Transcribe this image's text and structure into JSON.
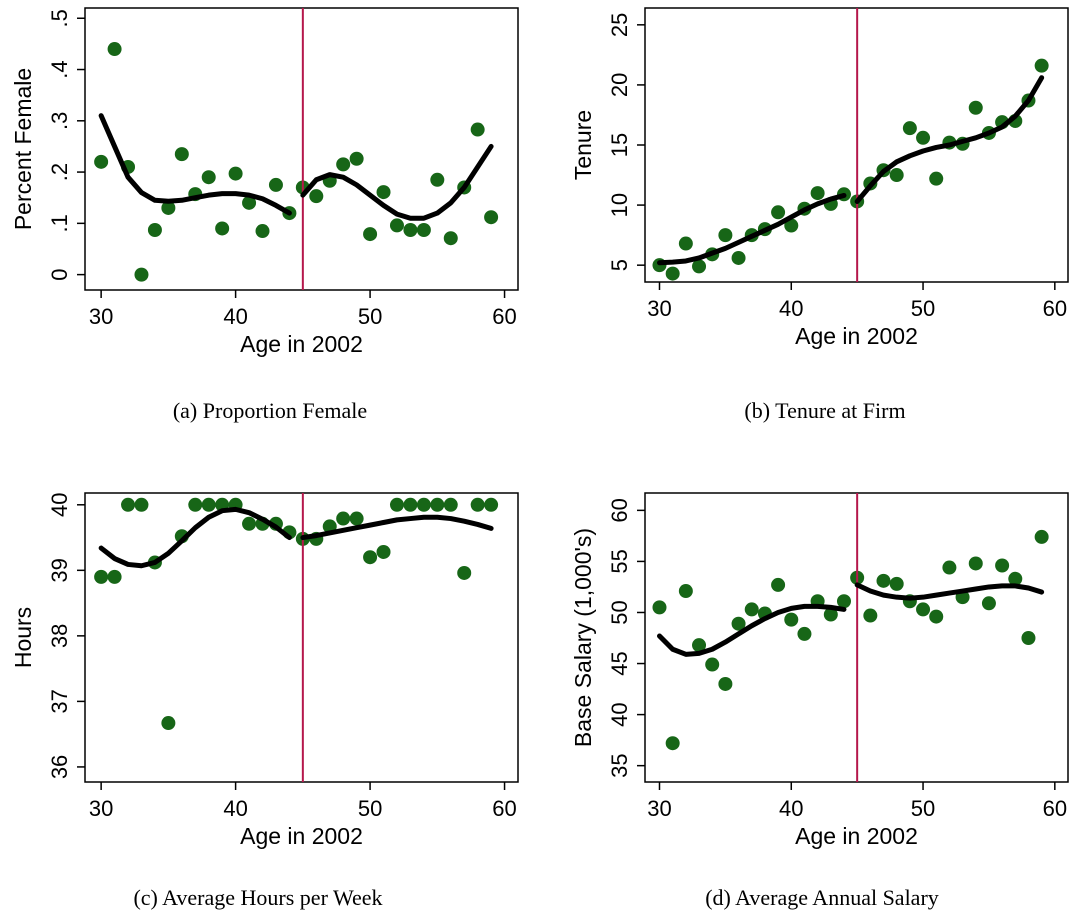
{
  "chart_data": [
    {
      "type": "scatter",
      "caption": "(a) Proportion Female",
      "xlabel": "Age in 2002",
      "ylabel": "Percent Female",
      "x": [
        30,
        31,
        32,
        33,
        34,
        35,
        36,
        37,
        38,
        39,
        40,
        41,
        42,
        43,
        44,
        45,
        46,
        47,
        48,
        49,
        50,
        51,
        52,
        53,
        54,
        55,
        56,
        57,
        58,
        59
      ],
      "xlim": [
        28.8,
        61
      ],
      "xticks": [
        30,
        40,
        50,
        60
      ],
      "ylim": [
        -0.03,
        0.52
      ],
      "yticks": [
        0,
        {
          "value": 0.1,
          "label": ".1"
        },
        {
          "value": 0.2,
          "label": ".2"
        },
        {
          "value": 0.3,
          "label": ".3"
        },
        {
          "value": 0.4,
          "label": ".4"
        },
        {
          "value": 0.5,
          "label": ".5"
        }
      ],
      "vline": 45,
      "vline_color": "#b5174b",
      "series": [
        {
          "type": "scatter",
          "color": "#176617",
          "values": [
            0.22,
            0.44,
            0.21,
            0,
            0.087,
            0.13,
            0.235,
            0.157,
            0.19,
            0.09,
            0.197,
            0.14,
            0.085,
            0.175,
            0.12,
            0.17,
            0.153,
            0.183,
            0.215,
            0.226,
            0.079,
            0.161,
            0.096,
            0.087,
            0.087,
            0.185,
            0.071,
            0.17,
            0.283,
            0.112
          ]
        },
        {
          "type": "line",
          "color": "#000000",
          "x": [
            30,
            31,
            32,
            33,
            34,
            35,
            36,
            37,
            38,
            39,
            40,
            41,
            42,
            43,
            44
          ],
          "values": [
            0.31,
            0.25,
            0.19,
            0.16,
            0.145,
            0.143,
            0.145,
            0.15,
            0.155,
            0.158,
            0.158,
            0.155,
            0.148,
            0.135,
            0.12
          ]
        },
        {
          "type": "line",
          "color": "#000000",
          "x": [
            45,
            46,
            47,
            48,
            49,
            50,
            51,
            52,
            53,
            54,
            55,
            56,
            57,
            58,
            59
          ],
          "values": [
            0.155,
            0.185,
            0.195,
            0.19,
            0.175,
            0.155,
            0.135,
            0.118,
            0.11,
            0.11,
            0.12,
            0.14,
            0.17,
            0.21,
            0.25
          ]
        }
      ]
    },
    {
      "type": "scatter",
      "caption": "(b) Tenure at Firm",
      "xlabel": "Age in 2002",
      "ylabel": "Tenure",
      "x": [
        30,
        31,
        32,
        33,
        34,
        35,
        36,
        37,
        38,
        39,
        40,
        41,
        42,
        43,
        44,
        45,
        46,
        47,
        48,
        49,
        50,
        51,
        52,
        53,
        54,
        55,
        56,
        57,
        58,
        59
      ],
      "xlim": [
        28.9,
        61
      ],
      "xticks": [
        30,
        40,
        50,
        60
      ],
      "ylim": [
        3.6,
        26.4
      ],
      "yticks": [
        5,
        10,
        15,
        20,
        25
      ],
      "vline": 45,
      "vline_color": "#b5174b",
      "series": [
        {
          "type": "scatter",
          "color": "#176617",
          "values": [
            5.0,
            4.3,
            6.8,
            4.9,
            5.9,
            7.5,
            5.6,
            7.5,
            8.0,
            9.4,
            8.3,
            9.7,
            11.0,
            10.1,
            10.9,
            10.3,
            11.8,
            12.9,
            12.5,
            16.4,
            15.6,
            12.2,
            15.2,
            15.1,
            18.1,
            16.0,
            16.9,
            17.0,
            18.7,
            21.6
          ]
        },
        {
          "type": "line",
          "color": "#000000",
          "x": [
            30,
            31,
            32,
            33,
            34,
            35,
            36,
            37,
            38,
            39,
            40,
            41,
            42,
            43,
            44
          ],
          "values": [
            5.2,
            5.25,
            5.35,
            5.6,
            6.0,
            6.4,
            6.9,
            7.4,
            7.9,
            8.4,
            9.0,
            9.6,
            10.1,
            10.5,
            10.8
          ]
        },
        {
          "type": "line",
          "color": "#000000",
          "x": [
            45,
            46,
            47,
            48,
            49,
            50,
            51,
            52,
            53,
            54,
            55,
            56,
            57,
            58,
            59
          ],
          "values": [
            10.3,
            11.6,
            12.8,
            13.6,
            14.1,
            14.5,
            14.8,
            15.0,
            15.3,
            15.6,
            16.0,
            16.5,
            17.4,
            18.7,
            20.6
          ]
        }
      ]
    },
    {
      "type": "scatter",
      "caption": "(c) Average Hours per Week",
      "xlabel": "Age in 2002",
      "ylabel": "Hours",
      "x": [
        30,
        31,
        32,
        33,
        34,
        35,
        36,
        37,
        38,
        39,
        40,
        41,
        42,
        43,
        44,
        45,
        46,
        47,
        48,
        49,
        50,
        51,
        52,
        53,
        54,
        55,
        56,
        57,
        58,
        59
      ],
      "xlim": [
        28.8,
        61
      ],
      "xticks": [
        30,
        40,
        50,
        60
      ],
      "ylim": [
        35.77,
        40.18
      ],
      "yticks": [
        36,
        37,
        38,
        39,
        40
      ],
      "vline": 45,
      "vline_color": "#b5174b",
      "series": [
        {
          "type": "scatter",
          "color": "#176617",
          "values": [
            38.9,
            38.9,
            40,
            40,
            39.12,
            36.67,
            39.52,
            40,
            40,
            40,
            40,
            39.71,
            39.71,
            39.71,
            39.58,
            39.48,
            39.48,
            39.67,
            39.79,
            39.79,
            39.2,
            39.28,
            40,
            40,
            40,
            40,
            40,
            38.96,
            40,
            40
          ]
        },
        {
          "type": "line",
          "color": "#000000",
          "x": [
            30,
            31,
            32,
            33,
            34,
            35,
            36,
            37,
            38,
            39,
            40,
            41,
            42,
            43,
            44
          ],
          "values": [
            39.34,
            39.18,
            39.09,
            39.07,
            39.12,
            39.26,
            39.45,
            39.65,
            39.81,
            39.91,
            39.93,
            39.88,
            39.78,
            39.66,
            39.5
          ]
        },
        {
          "type": "line",
          "color": "#000000",
          "x": [
            45,
            46,
            47,
            48,
            49,
            50,
            51,
            52,
            53,
            54,
            55,
            56,
            57,
            58,
            59
          ],
          "values": [
            39.5,
            39.53,
            39.57,
            39.61,
            39.65,
            39.69,
            39.73,
            39.77,
            39.79,
            39.81,
            39.81,
            39.79,
            39.75,
            39.7,
            39.64
          ]
        }
      ]
    },
    {
      "type": "scatter",
      "caption": "(d) Average Annual Salary",
      "xlabel": "Age in 2002",
      "ylabel": "Base Salary (1,000's)",
      "x": [
        30,
        31,
        32,
        33,
        34,
        35,
        36,
        37,
        38,
        39,
        40,
        41,
        42,
        43,
        44,
        45,
        46,
        47,
        48,
        49,
        50,
        51,
        52,
        53,
        54,
        55,
        56,
        57,
        58,
        59
      ],
      "xlim": [
        28.9,
        61
      ],
      "xticks": [
        30,
        40,
        50,
        60
      ],
      "ylim": [
        33.4,
        61.7
      ],
      "yticks": [
        35,
        40,
        45,
        50,
        55,
        60
      ],
      "vline": 45,
      "vline_color": "#b5174b",
      "series": [
        {
          "type": "scatter",
          "color": "#176617",
          "values": [
            50.5,
            37.2,
            52.1,
            46.8,
            44.9,
            43.0,
            48.9,
            50.3,
            49.9,
            52.7,
            49.3,
            47.9,
            51.1,
            49.8,
            51.1,
            53.4,
            49.7,
            53.1,
            52.8,
            51.1,
            50.3,
            49.6,
            54.4,
            51.5,
            54.8,
            50.9,
            54.6,
            53.3,
            47.5,
            57.4
          ]
        },
        {
          "type": "line",
          "color": "#000000",
          "x": [
            30,
            31,
            32,
            33,
            34,
            35,
            36,
            37,
            38,
            39,
            40,
            41,
            42,
            43,
            44
          ],
          "values": [
            47.7,
            46.4,
            45.9,
            46.0,
            46.4,
            47.1,
            47.9,
            48.7,
            49.4,
            50.0,
            50.4,
            50.6,
            50.6,
            50.5,
            50.3
          ]
        },
        {
          "type": "line",
          "color": "#000000",
          "x": [
            45,
            46,
            47,
            48,
            49,
            50,
            51,
            52,
            53,
            54,
            55,
            56,
            57,
            58,
            59
          ],
          "values": [
            52.7,
            52.1,
            51.7,
            51.5,
            51.4,
            51.5,
            51.7,
            51.9,
            52.1,
            52.3,
            52.5,
            52.6,
            52.6,
            52.4,
            52.0
          ]
        }
      ]
    }
  ]
}
